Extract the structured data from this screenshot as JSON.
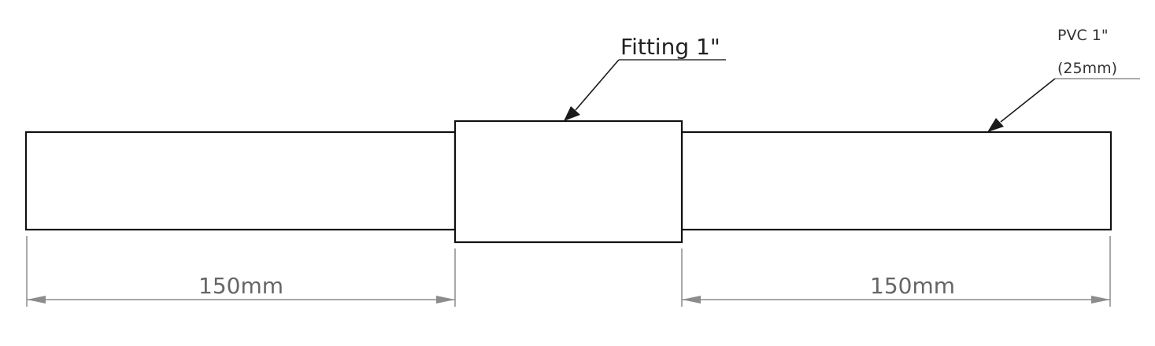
{
  "callouts": {
    "fitting": "Fitting 1\"",
    "pipe_size": "PVC 1\"",
    "pipe_metric": "(25mm)"
  },
  "dimensions": {
    "left": "150mm",
    "right": "150mm"
  },
  "colors": {
    "outline": "#111111",
    "dimension": "#8c8c8c",
    "dimension_text": "#666666"
  }
}
